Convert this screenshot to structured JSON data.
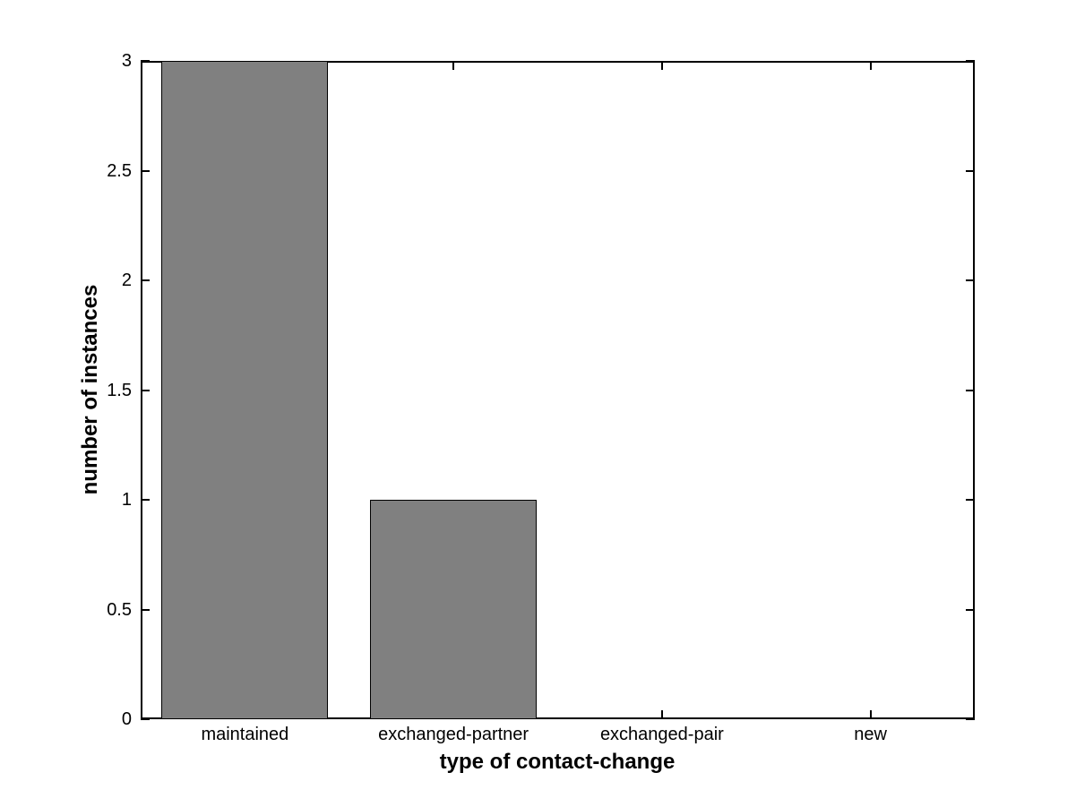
{
  "chart_data": {
    "type": "bar",
    "title": "",
    "xlabel": "type of contact-change",
    "ylabel": "number of instances",
    "categories": [
      "maintained",
      "exchanged-partner",
      "exchanged-pair",
      "new"
    ],
    "values": [
      3,
      1,
      0,
      0
    ],
    "ylim": [
      0,
      3
    ],
    "yticks": [
      0,
      0.5,
      1,
      1.5,
      2,
      2.5,
      3
    ],
    "ytick_labels": [
      "0",
      "0.5",
      "1",
      "1.5",
      "2",
      "2.5",
      "3"
    ],
    "bar_width_fraction": 0.8,
    "grid": false,
    "legend": null,
    "box": true,
    "tick_direction": "in",
    "colors": {
      "bar_fill": "#808080",
      "bar_edge": "#000000",
      "axis": "#000000",
      "text": "#000000",
      "background": "#ffffff"
    }
  }
}
